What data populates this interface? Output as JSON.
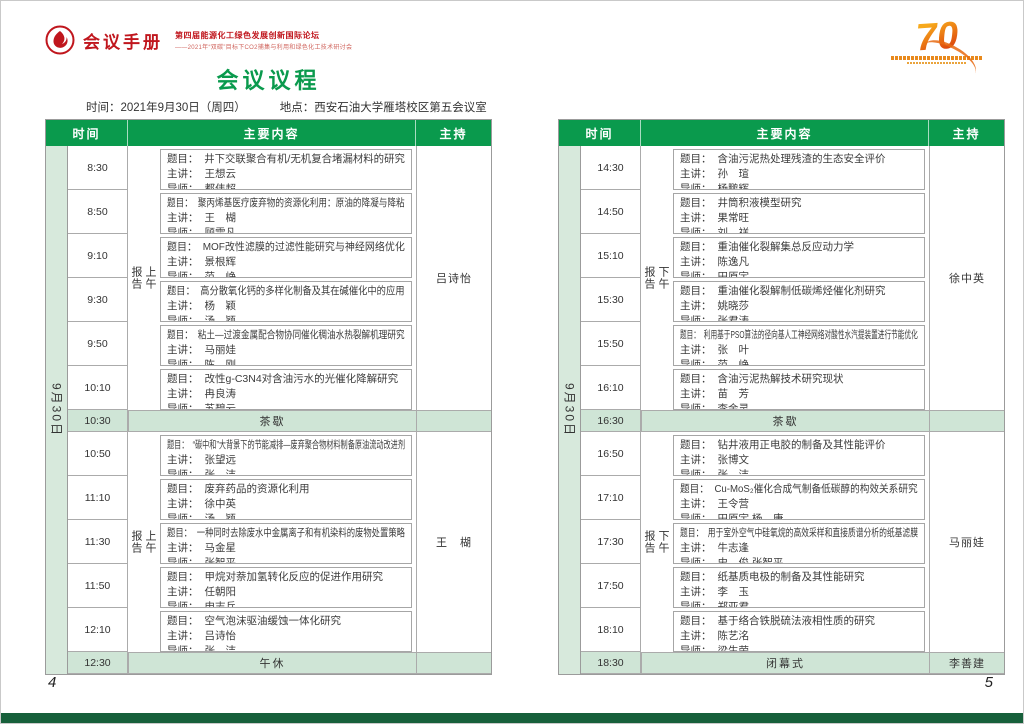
{
  "header": {
    "handbook_title": "会议手册",
    "forum_title": "第四届能源化工绿色发展创新国际论坛",
    "forum_subtitle": "——2021年“双碳”目标下CO2捕集与利用和绿色化工技术研讨会",
    "anniversary_number": "70",
    "page_title": "会议议程",
    "info_time": "时间：2021年9月30日（周四）",
    "info_place": "地点：西安石油大学雁塔校区第五会议室"
  },
  "columns": {
    "time": "时间",
    "content": "主要内容",
    "host": "主持"
  },
  "row_labels": {
    "topic": "题目：",
    "speaker": "主讲：",
    "advisor": "导师："
  },
  "colors": {
    "header_green": "#0a9a4d",
    "pale_green": "#d7e9dc",
    "break_green": "#cfe5d6",
    "footer_green": "#17603b",
    "accent_red": "#c0161d",
    "title_green": "#0a9a4d"
  },
  "pages": [
    {
      "page_number": "4",
      "date_label": "9月30日",
      "blocks": [
        {
          "type": "segment",
          "session": "上午报告",
          "host": "吕诗怡",
          "rows": [
            {
              "time": "8:30",
              "topic": "井下交联聚合有机/无机复合堵漏材料的研究",
              "speaker": "王想云",
              "advisor": "都伟超"
            },
            {
              "time": "8:50",
              "topic": "聚丙烯基医疗废弃物的资源化利用：原油的降凝与降粘",
              "speaker": "王　楜",
              "advisor": "顾雪凡"
            },
            {
              "time": "9:10",
              "topic": "MOF改性滤膜的过滤性能研究与神经网络优化",
              "speaker": "景根辉",
              "advisor": "范　峥"
            },
            {
              "time": "9:30",
              "topic": "高分散氧化钙的多样化制备及其在碱催化中的应用",
              "speaker": "杨　颖",
              "advisor": "汤　颖"
            },
            {
              "time": "9:50",
              "topic": "粘土—过渡金属配合物协同催化稠油水热裂解机理研究",
              "speaker": "马丽娃",
              "advisor": "陈　刚"
            },
            {
              "time": "10:10",
              "topic": "改性g-C3N4对含油污水的光催化降解研究",
              "speaker": "冉良涛",
              "advisor": "苏碧云"
            }
          ]
        },
        {
          "type": "break",
          "time": "10:30",
          "label": "茶歇",
          "host": ""
        },
        {
          "type": "segment",
          "session": "上午报告",
          "host": "王　楜",
          "rows": [
            {
              "time": "10:50",
              "topic": "“碳中和”大背景下的节能减排—废弃聚合物材料制备原油流动改进剂",
              "speaker": "张望远",
              "advisor": "张　洁"
            },
            {
              "time": "11:10",
              "topic": "废弃药品的资源化利用",
              "speaker": "徐中英",
              "advisor": "汤　颖"
            },
            {
              "time": "11:30",
              "topic": "一种同时去除废水中金属离子和有机染料的废物处置策略",
              "speaker": "马金星",
              "advisor": "张智平"
            },
            {
              "time": "11:50",
              "topic": "甲烷对萘加氢转化反应的促进作用研究",
              "speaker": "任朝阳",
              "advisor": "申志兵"
            },
            {
              "time": "12:10",
              "topic": "空气泡沫驱油缓蚀一体化研究",
              "speaker": "吕诗怡",
              "advisor": "张　洁"
            }
          ]
        },
        {
          "type": "break",
          "time": "12:30",
          "label": "午休",
          "host": ""
        }
      ]
    },
    {
      "page_number": "5",
      "date_label": "9月30日",
      "blocks": [
        {
          "type": "segment",
          "session": "下午报告",
          "host": "徐中英",
          "rows": [
            {
              "time": "14:30",
              "topic": "含油污泥热处理残渣的生态安全评价",
              "speaker": "孙　瑄",
              "advisor": "杨鹏辉"
            },
            {
              "time": "14:50",
              "topic": "井筒积液模型研究",
              "speaker": "果常旺",
              "advisor": "刘　祥"
            },
            {
              "time": "15:10",
              "topic": "重油催化裂解集总反应动力学",
              "speaker": "陈逸凡",
              "advisor": "田原宇"
            },
            {
              "time": "15:30",
              "topic": "重油催化裂解制低碳烯烃催化剂研究",
              "speaker": "姚晓莎",
              "advisor": "张君涛"
            },
            {
              "time": "15:50",
              "topic": "利用基于PSO算法的径向基人工神经网络对酸性水汽提装置进行节能优化",
              "speaker": "张　叶",
              "advisor": "范　峥"
            },
            {
              "time": "16:10",
              "topic": "含油污泥热解技术研究现状",
              "speaker": "苗　芳",
              "advisor": "李金灵"
            }
          ]
        },
        {
          "type": "break",
          "time": "16:30",
          "label": "茶歇",
          "host": ""
        },
        {
          "type": "segment",
          "session": "下午报告",
          "host": "马丽娃",
          "rows": [
            {
              "time": "16:50",
              "topic": "钻井液用正电胶的制备及其性能评价",
              "speaker": "张博文",
              "advisor": "张　洁"
            },
            {
              "time": "17:10",
              "topic": "Cu-MoS₂催化合成气制备低碳醇的构效关系研究",
              "speaker": "王令营",
              "advisor": "田原宇 杨　康"
            },
            {
              "time": "17:30",
              "topic": "用于室外空气中硅氧烷的高效采样和直接质谱分析的纸基滤膜",
              "speaker": "牛志逢",
              "advisor": "史　俊 张智平"
            },
            {
              "time": "17:50",
              "topic": "纸基质电极的制备及其性能研究",
              "speaker": "李　玉",
              "advisor": "郑亚君"
            },
            {
              "time": "18:10",
              "topic": "基于络合铁脱硫法液相性质的研究",
              "speaker": "陈艺洺",
              "advisor": "梁生荣"
            }
          ]
        },
        {
          "type": "break",
          "time": "18:30",
          "label": "闭幕式",
          "host": "李善建"
        }
      ]
    }
  ]
}
